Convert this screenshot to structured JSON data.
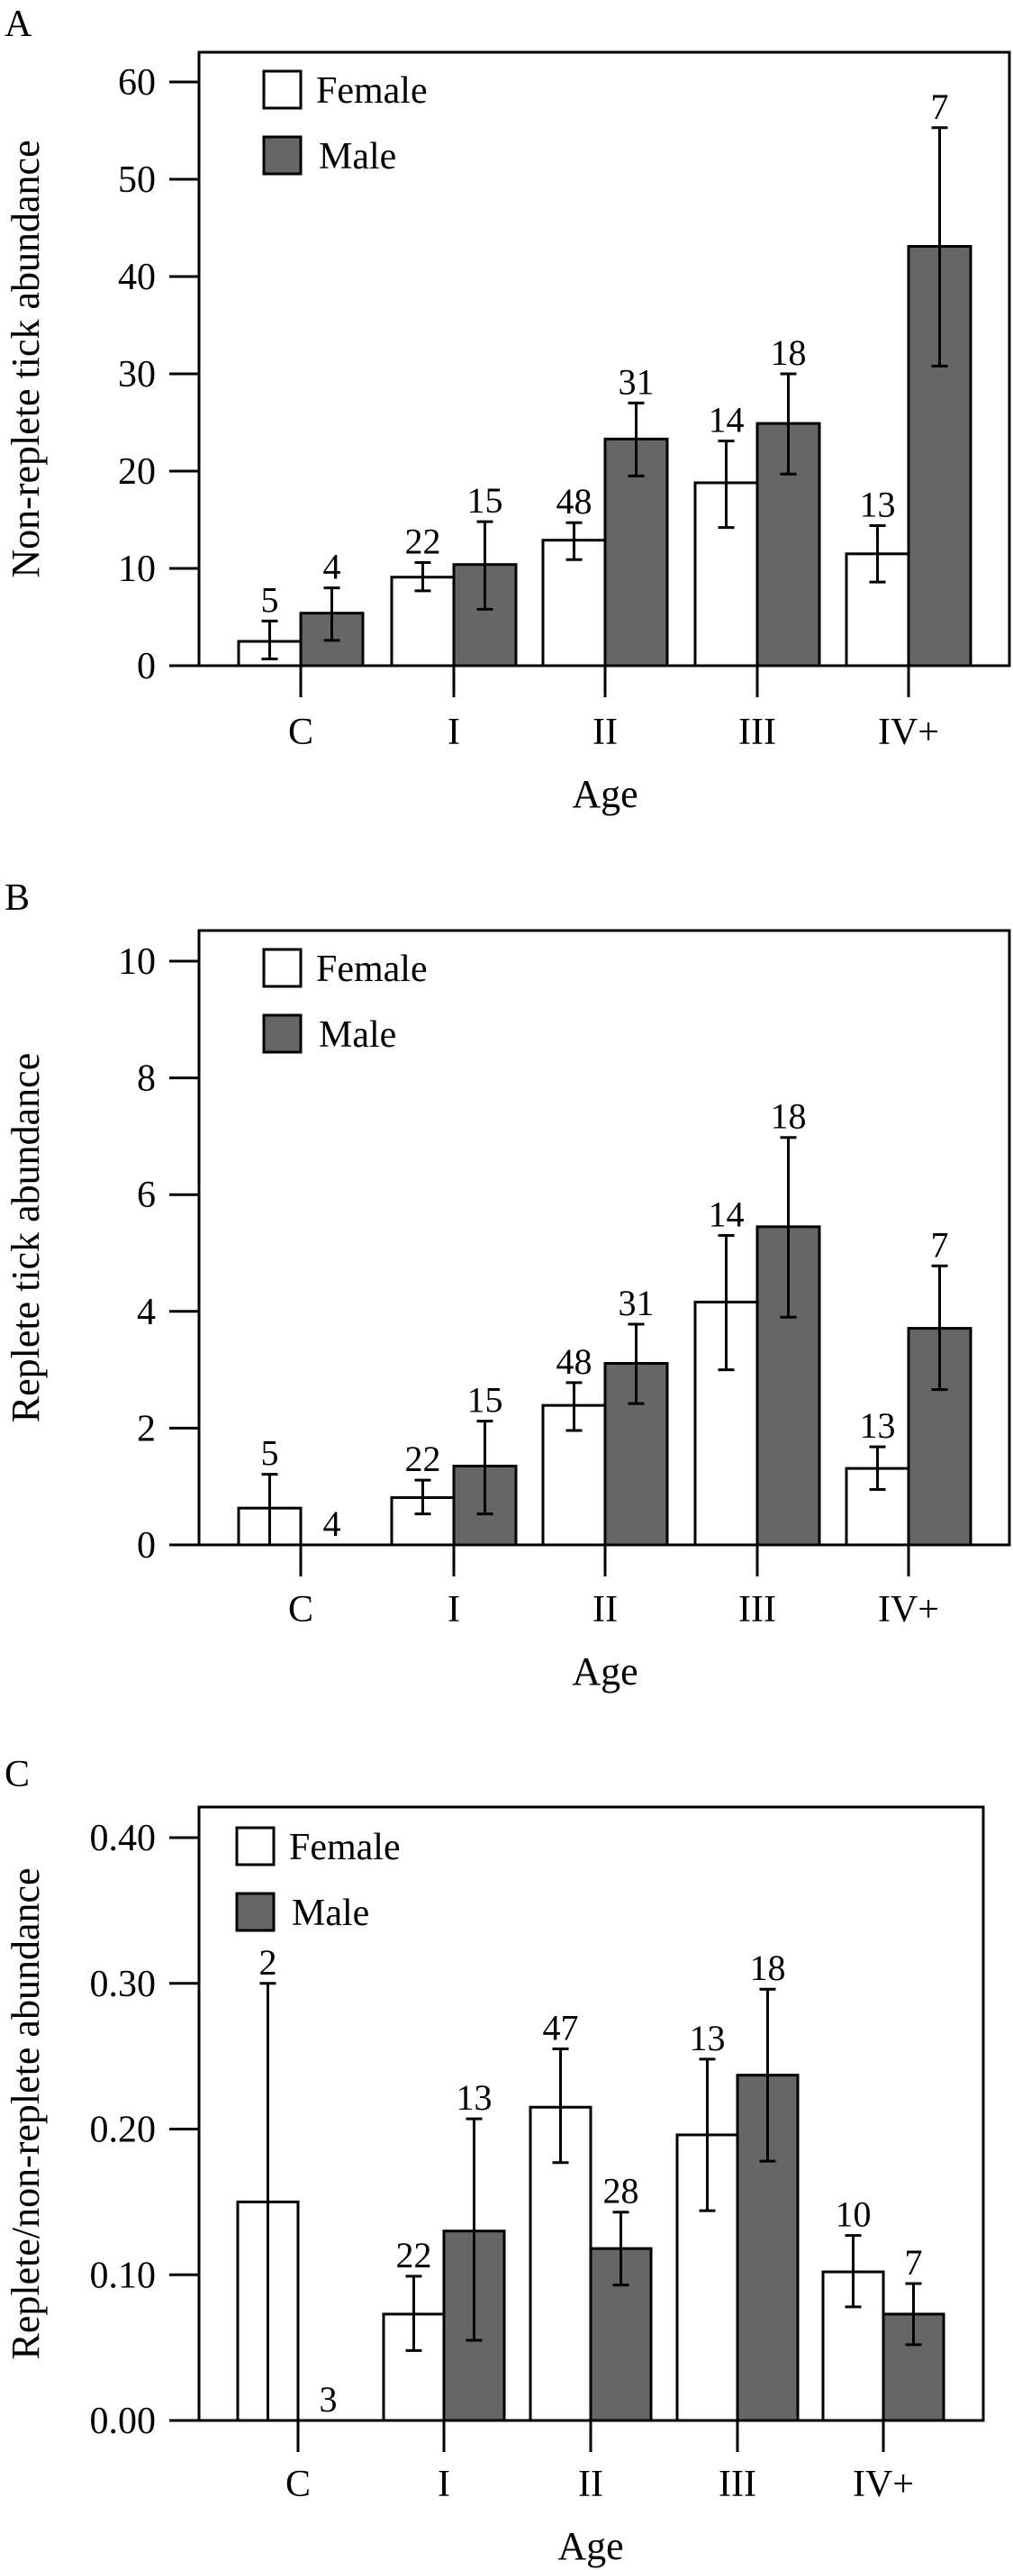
{
  "chart_data": [
    {
      "type": "bar",
      "panel_label": "A",
      "ylabel": "Non-replete tick abundance",
      "xlabel": "Age",
      "categories": [
        "C",
        "I",
        "II",
        "III",
        "IV+"
      ],
      "ylim": [
        0,
        60
      ],
      "yticks": [
        0,
        10,
        20,
        30,
        40,
        50,
        60
      ],
      "ytick_labels": [
        "0",
        "10",
        "20",
        "30",
        "40",
        "50",
        "60"
      ],
      "legend": {
        "position": "top-left",
        "entries": [
          "Female",
          "Male"
        ]
      },
      "series": [
        {
          "name": "Female",
          "color": "#ffffff",
          "values": [
            2.5,
            9.1,
            12.9,
            18.8,
            11.5
          ],
          "err_low": [
            0.7,
            7.7,
            10.9,
            14.2,
            8.6
          ],
          "err_high": [
            4.6,
            10.6,
            14.7,
            23.1,
            14.4
          ],
          "n": [
            "5",
            "22",
            "48",
            "14",
            "13"
          ]
        },
        {
          "name": "Male",
          "color": "#666666",
          "values": [
            5.4,
            10.4,
            23.3,
            24.9,
            43.1
          ],
          "err_low": [
            2.6,
            5.8,
            19.5,
            19.7,
            30.8
          ],
          "err_high": [
            8.0,
            14.8,
            27.0,
            30.0,
            55.3
          ],
          "n": [
            "4",
            "15",
            "31",
            "18",
            "7"
          ]
        }
      ]
    },
    {
      "type": "bar",
      "panel_label": "B",
      "ylabel": "Replete tick abundance",
      "xlabel": "Age",
      "categories": [
        "C",
        "I",
        "II",
        "III",
        "IV+"
      ],
      "ylim": [
        0,
        10
      ],
      "yticks": [
        0,
        2,
        4,
        6,
        8,
        10
      ],
      "ytick_labels": [
        "0",
        "2",
        "4",
        "6",
        "8",
        "10"
      ],
      "legend": {
        "position": "top-left",
        "entries": [
          "Female",
          "Male"
        ]
      },
      "series": [
        {
          "name": "Female",
          "color": "#ffffff",
          "values": [
            0.63,
            0.81,
            2.39,
            4.16,
            1.31
          ],
          "err_low": [
            0.0,
            0.53,
            1.96,
            3.0,
            0.95
          ],
          "err_high": [
            1.21,
            1.11,
            2.78,
            5.3,
            1.68
          ],
          "n": [
            "5",
            "22",
            "48",
            "14",
            "13"
          ]
        },
        {
          "name": "Male",
          "color": "#666666",
          "values": [
            0,
            1.35,
            3.11,
            5.45,
            3.71
          ],
          "err_low": [
            0,
            0.53,
            2.42,
            3.9,
            2.66
          ],
          "err_high": [
            0,
            2.12,
            3.78,
            6.98,
            4.78
          ],
          "n": [
            "4",
            "15",
            "31",
            "18",
            "7"
          ]
        }
      ]
    },
    {
      "type": "bar",
      "panel_label": "C",
      "ylabel": "Replete/non-replete abundance",
      "xlabel": "Age",
      "categories": [
        "C",
        "I",
        "II",
        "III",
        "IV+"
      ],
      "ylim": [
        0,
        0.4
      ],
      "yticks": [
        0,
        0.1,
        0.2,
        0.3,
        0.4
      ],
      "ytick_labels": [
        "0.00",
        "0.10",
        "0.20",
        "0.30",
        "0.40"
      ],
      "legend": {
        "position": "top-left",
        "entries": [
          "Female",
          "Male"
        ]
      },
      "series": [
        {
          "name": "Female",
          "color": "#ffffff",
          "values": [
            0.15,
            0.073,
            0.215,
            0.196,
            0.102
          ],
          "err_low": [
            0.0,
            0.048,
            0.177,
            0.144,
            0.078
          ],
          "err_high": [
            0.3,
            0.099,
            0.255,
            0.248,
            0.127
          ],
          "n": [
            "2",
            "22",
            "47",
            "13",
            "10"
          ]
        },
        {
          "name": "Male",
          "color": "#666666",
          "values": [
            0,
            0.13,
            0.118,
            0.237,
            0.073
          ],
          "err_low": [
            0,
            0.055,
            0.093,
            0.178,
            0.052
          ],
          "err_high": [
            0,
            0.207,
            0.143,
            0.296,
            0.094
          ],
          "n": [
            "3",
            "13",
            "28",
            "18",
            "7"
          ]
        }
      ]
    }
  ]
}
